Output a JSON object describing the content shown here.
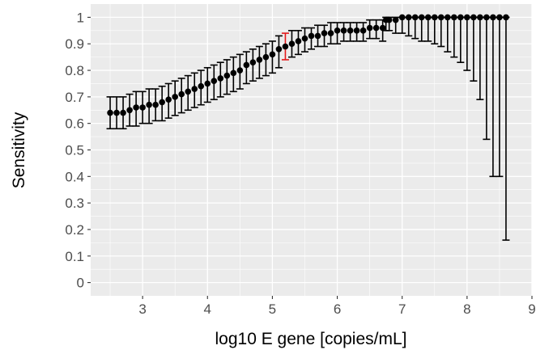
{
  "chart_data": {
    "type": "scatter",
    "xlabel": "log10 E gene [copies/mL]",
    "ylabel": "Sensitivity",
    "xlim": [
      2.2,
      9.0
    ],
    "ylim": [
      -0.05,
      1.05
    ],
    "x_ticks": [
      3,
      4,
      5,
      6,
      7,
      8,
      9
    ],
    "x_tick_labels": [
      "3",
      "4",
      "5",
      "6",
      "7",
      "8",
      "9"
    ],
    "y_ticks": [
      0,
      0.1,
      0.2,
      0.3,
      0.4,
      0.5,
      0.6,
      0.7,
      0.8,
      0.9,
      1.0
    ],
    "y_tick_labels": [
      "0",
      "0.1",
      "0.2",
      "0.3",
      "0.4",
      "0.5",
      "0.6",
      "0.7",
      "0.8",
      "0.9",
      "1"
    ],
    "grid": true,
    "background_color": "#ebebeb",
    "grid_color": "#ffffff",
    "point_color": "#000000",
    "highlight_color": "#e41a1c",
    "series": [
      {
        "points": [
          {
            "x": 2.5,
            "y": 0.64,
            "lo": 0.58,
            "hi": 0.7
          },
          {
            "x": 2.6,
            "y": 0.64,
            "lo": 0.58,
            "hi": 0.7
          },
          {
            "x": 2.7,
            "y": 0.64,
            "lo": 0.58,
            "hi": 0.7
          },
          {
            "x": 2.8,
            "y": 0.65,
            "lo": 0.59,
            "hi": 0.71
          },
          {
            "x": 2.9,
            "y": 0.66,
            "lo": 0.59,
            "hi": 0.72
          },
          {
            "x": 3.0,
            "y": 0.66,
            "lo": 0.6,
            "hi": 0.72
          },
          {
            "x": 3.1,
            "y": 0.67,
            "lo": 0.6,
            "hi": 0.73
          },
          {
            "x": 3.2,
            "y": 0.67,
            "lo": 0.61,
            "hi": 0.73
          },
          {
            "x": 3.3,
            "y": 0.68,
            "lo": 0.61,
            "hi": 0.74
          },
          {
            "x": 3.4,
            "y": 0.69,
            "lo": 0.62,
            "hi": 0.75
          },
          {
            "x": 3.5,
            "y": 0.7,
            "lo": 0.63,
            "hi": 0.76
          },
          {
            "x": 3.6,
            "y": 0.71,
            "lo": 0.64,
            "hi": 0.77
          },
          {
            "x": 3.7,
            "y": 0.72,
            "lo": 0.65,
            "hi": 0.78
          },
          {
            "x": 3.8,
            "y": 0.73,
            "lo": 0.66,
            "hi": 0.79
          },
          {
            "x": 3.9,
            "y": 0.74,
            "lo": 0.67,
            "hi": 0.8
          },
          {
            "x": 4.0,
            "y": 0.75,
            "lo": 0.68,
            "hi": 0.81
          },
          {
            "x": 4.1,
            "y": 0.76,
            "lo": 0.69,
            "hi": 0.82
          },
          {
            "x": 4.2,
            "y": 0.77,
            "lo": 0.7,
            "hi": 0.83
          },
          {
            "x": 4.3,
            "y": 0.78,
            "lo": 0.71,
            "hi": 0.84
          },
          {
            "x": 4.4,
            "y": 0.79,
            "lo": 0.72,
            "hi": 0.85
          },
          {
            "x": 4.5,
            "y": 0.8,
            "lo": 0.73,
            "hi": 0.86
          },
          {
            "x": 4.6,
            "y": 0.82,
            "lo": 0.75,
            "hi": 0.87
          },
          {
            "x": 4.7,
            "y": 0.83,
            "lo": 0.76,
            "hi": 0.88
          },
          {
            "x": 4.8,
            "y": 0.84,
            "lo": 0.77,
            "hi": 0.89
          },
          {
            "x": 4.9,
            "y": 0.85,
            "lo": 0.78,
            "hi": 0.9
          },
          {
            "x": 5.0,
            "y": 0.86,
            "lo": 0.79,
            "hi": 0.91
          },
          {
            "x": 5.1,
            "y": 0.88,
            "lo": 0.81,
            "hi": 0.93
          },
          {
            "x": 5.2,
            "y": 0.89,
            "lo": 0.84,
            "hi": 0.94,
            "highlight": true
          },
          {
            "x": 5.3,
            "y": 0.9,
            "lo": 0.85,
            "hi": 0.95
          },
          {
            "x": 5.4,
            "y": 0.91,
            "lo": 0.86,
            "hi": 0.95
          },
          {
            "x": 5.5,
            "y": 0.92,
            "lo": 0.87,
            "hi": 0.96
          },
          {
            "x": 5.6,
            "y": 0.93,
            "lo": 0.88,
            "hi": 0.96
          },
          {
            "x": 5.7,
            "y": 0.93,
            "lo": 0.89,
            "hi": 0.97
          },
          {
            "x": 5.8,
            "y": 0.94,
            "lo": 0.89,
            "hi": 0.97
          },
          {
            "x": 5.9,
            "y": 0.94,
            "lo": 0.9,
            "hi": 0.98
          },
          {
            "x": 6.0,
            "y": 0.95,
            "lo": 0.9,
            "hi": 0.98
          },
          {
            "x": 6.1,
            "y": 0.95,
            "lo": 0.91,
            "hi": 0.98
          },
          {
            "x": 6.2,
            "y": 0.95,
            "lo": 0.91,
            "hi": 0.98
          },
          {
            "x": 6.3,
            "y": 0.95,
            "lo": 0.91,
            "hi": 0.98
          },
          {
            "x": 6.4,
            "y": 0.95,
            "lo": 0.91,
            "hi": 0.98
          },
          {
            "x": 6.5,
            "y": 0.96,
            "lo": 0.92,
            "hi": 0.99
          },
          {
            "x": 6.6,
            "y": 0.96,
            "lo": 0.92,
            "hi": 0.99
          },
          {
            "x": 6.7,
            "y": 0.96,
            "lo": 0.91,
            "hi": 0.99
          },
          {
            "x": 6.75,
            "y": 0.99,
            "lo": 0.95,
            "hi": 1.0
          },
          {
            "x": 6.8,
            "y": 0.99,
            "lo": 0.95,
            "hi": 1.0
          },
          {
            "x": 6.9,
            "y": 0.99,
            "lo": 0.94,
            "hi": 1.0
          },
          {
            "x": 7.0,
            "y": 1.0,
            "lo": 0.94,
            "hi": 1.0
          },
          {
            "x": 7.1,
            "y": 1.0,
            "lo": 0.93,
            "hi": 1.0
          },
          {
            "x": 7.2,
            "y": 1.0,
            "lo": 0.92,
            "hi": 1.0
          },
          {
            "x": 7.3,
            "y": 1.0,
            "lo": 0.91,
            "hi": 1.0
          },
          {
            "x": 7.4,
            "y": 1.0,
            "lo": 0.91,
            "hi": 1.0
          },
          {
            "x": 7.5,
            "y": 1.0,
            "lo": 0.9,
            "hi": 1.0
          },
          {
            "x": 7.6,
            "y": 1.0,
            "lo": 0.89,
            "hi": 1.0
          },
          {
            "x": 7.7,
            "y": 1.0,
            "lo": 0.87,
            "hi": 1.0
          },
          {
            "x": 7.8,
            "y": 1.0,
            "lo": 0.85,
            "hi": 1.0
          },
          {
            "x": 7.9,
            "y": 1.0,
            "lo": 0.83,
            "hi": 1.0
          },
          {
            "x": 8.0,
            "y": 1.0,
            "lo": 0.8,
            "hi": 1.0
          },
          {
            "x": 8.1,
            "y": 1.0,
            "lo": 0.76,
            "hi": 1.0
          },
          {
            "x": 8.2,
            "y": 1.0,
            "lo": 0.69,
            "hi": 1.0
          },
          {
            "x": 8.3,
            "y": 1.0,
            "lo": 0.54,
            "hi": 1.0
          },
          {
            "x": 8.4,
            "y": 1.0,
            "lo": 0.4,
            "hi": 1.0
          },
          {
            "x": 8.5,
            "y": 1.0,
            "lo": 0.4,
            "hi": 1.0
          },
          {
            "x": 8.6,
            "y": 1.0,
            "lo": 0.16,
            "hi": 1.0
          }
        ]
      }
    ]
  }
}
